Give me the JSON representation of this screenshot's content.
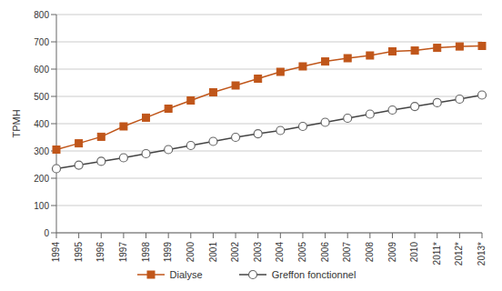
{
  "chart_data": {
    "type": "line",
    "y_label": "TPMH",
    "categories": [
      "1994",
      "1995",
      "1996",
      "1997",
      "1998",
      "1999",
      "2000",
      "2001",
      "2002",
      "2003",
      "2004",
      "2005",
      "2006",
      "2007",
      "2008",
      "2009",
      "2010",
      "2011*",
      "2012*",
      "2013*"
    ],
    "series": [
      {
        "name": "Dialyse",
        "color": "#c0561a",
        "marker": "square",
        "values": [
          305,
          328,
          352,
          390,
          422,
          455,
          485,
          515,
          540,
          565,
          590,
          610,
          628,
          640,
          650,
          665,
          668,
          678,
          683,
          685
        ]
      },
      {
        "name": "Greffon fonctionnel",
        "color": "#444444",
        "marker": "circle",
        "values": [
          235,
          248,
          262,
          275,
          290,
          305,
          320,
          335,
          350,
          363,
          375,
          390,
          405,
          420,
          435,
          450,
          463,
          477,
          490,
          505
        ]
      }
    ],
    "ylim": [
      0,
      800
    ],
    "yticks": [
      0,
      100,
      200,
      300,
      400,
      500,
      600,
      700,
      800
    ],
    "grid": true,
    "legend": "bottom"
  }
}
